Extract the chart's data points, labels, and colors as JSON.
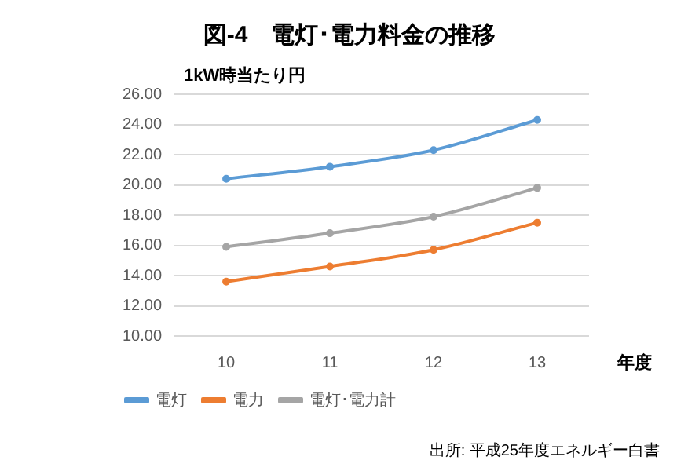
{
  "chart_data": {
    "type": "line",
    "title": "図-4　電灯･電力料金の推移",
    "ylabel": "1kW時当たり円",
    "xlabel": "年度",
    "categories": [
      "10",
      "11",
      "12",
      "13"
    ],
    "series": [
      {
        "name": "電灯",
        "color": "#5b9bd5",
        "values": [
          20.4,
          21.2,
          22.3,
          24.3
        ]
      },
      {
        "name": "電力",
        "color": "#ed7d31",
        "values": [
          13.6,
          14.6,
          15.7,
          17.5
        ]
      },
      {
        "name": "電灯･電力計",
        "color": "#a5a5a5",
        "values": [
          15.9,
          16.8,
          17.9,
          19.8
        ]
      }
    ],
    "ylim": [
      10,
      26
    ],
    "yticks": [
      {
        "value": 10,
        "label": "10.00"
      },
      {
        "value": 12,
        "label": "12.00"
      },
      {
        "value": 14,
        "label": "14.00"
      },
      {
        "value": 16,
        "label": "16.00"
      },
      {
        "value": 18,
        "label": "18.00"
      },
      {
        "value": 20,
        "label": "20.00"
      },
      {
        "value": 22,
        "label": "22.00"
      },
      {
        "value": 24,
        "label": "24.00"
      },
      {
        "value": 26,
        "label": "26.00"
      }
    ],
    "grid": "y",
    "legend": "bottom left",
    "marker": "circle",
    "line_style": "solid",
    "annotations": [
      "出所: 平成25年度エネルギー白書"
    ]
  }
}
